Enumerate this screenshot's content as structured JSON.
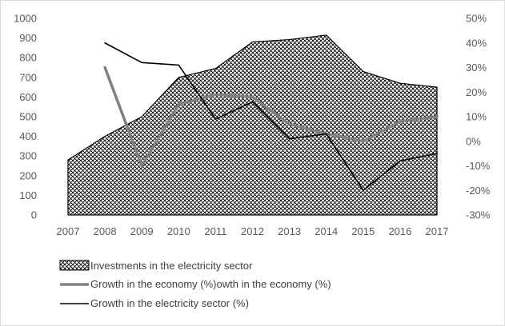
{
  "chart_data": {
    "type": "area",
    "x": [
      "2007",
      "2008",
      "2009",
      "2010",
      "2011",
      "2012",
      "2013",
      "2014",
      "2015",
      "2016",
      "2017"
    ],
    "y_left_ticks": [
      "0",
      "100",
      "200",
      "300",
      "400",
      "500",
      "600",
      "700",
      "800",
      "900",
      "1000"
    ],
    "y_right_ticks": [
      "-30%",
      "-20%",
      "-10%",
      "0%",
      "10%",
      "20%",
      "30%",
      "40%",
      "50%"
    ],
    "ylim_left": [
      0,
      1000
    ],
    "ylim_right": [
      -30,
      50
    ],
    "grid": false,
    "legend_position": "bottom-left",
    "series": [
      {
        "name": "Investments in the electricity sector",
        "type": "area",
        "axis": "left",
        "pattern": "crosshatch",
        "color": "#000000",
        "values": [
          280,
          400,
          500,
          700,
          745,
          880,
          892,
          915,
          730,
          670,
          650
        ]
      },
      {
        "name": "Growth in the economy (%)owth in the economy (%)",
        "type": "line",
        "axis": "right",
        "color": "#808080",
        "values": [
          null,
          30,
          -10,
          15,
          19,
          18,
          7,
          3,
          0,
          8,
          10
        ]
      },
      {
        "name": "Growth in the electricity sector (%)",
        "type": "line",
        "axis": "right",
        "color": "#000000",
        "values": [
          null,
          40,
          32,
          31,
          9,
          16,
          1,
          3,
          -20,
          -8,
          -5
        ]
      }
    ]
  }
}
